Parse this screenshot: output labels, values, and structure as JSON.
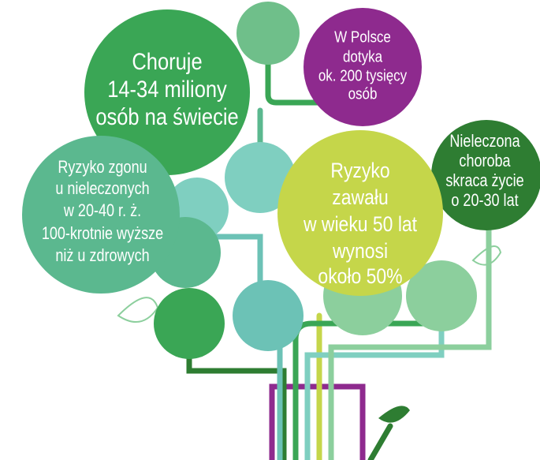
{
  "bubbles": [
    {
      "lines": [
        "Choruje",
        "14-34 miliony",
        "osób na świecie"
      ]
    },
    {
      "lines": [
        "W Polsce",
        "dotyka",
        "ok. 200 tysięcy",
        "osób"
      ]
    },
    {
      "lines": [
        "Nieleczona",
        "choroba",
        "skraca życie",
        "o 20-30 lat"
      ]
    },
    {
      "lines": [
        "Ryzyko zgonu",
        "u nieleczonych",
        "w 20-40 r. ż.",
        "100-krotnie wyższe",
        "niż u zdrowych"
      ]
    },
    {
      "lines": [
        "Ryzyko",
        "zawału",
        "w wieku 50 lat",
        "wynosi",
        "około 50%"
      ]
    }
  ]
}
